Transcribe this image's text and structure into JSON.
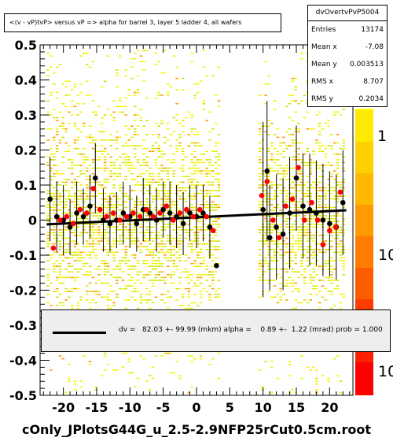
{
  "chart_data": {
    "type": "scatter",
    "title": "<(v - vP)tvP> versus   vP => alpha for barrel 3, layer 5 ladder 4, all wafers",
    "xlabel": "",
    "ylabel": "",
    "xlim": [
      -23.5,
      23.5
    ],
    "ylim": [
      -0.5,
      0.5
    ],
    "x_ticks": [
      -20,
      -15,
      -10,
      -5,
      0,
      5,
      10,
      15,
      20
    ],
    "y_ticks": [
      -0.5,
      -0.4,
      -0.3,
      -0.2,
      -0.1,
      0,
      0.1,
      0.2,
      0.3,
      0.4,
      0.5
    ],
    "y_tick_labels": [
      "-0.5",
      "-0.4",
      "-0.3",
      "-0.2",
      "-0.1",
      "0",
      "0.1",
      "0.2",
      "0.3",
      "0.4",
      "0.5"
    ],
    "x_tick_labels": [
      "-20",
      "-15",
      "-10",
      "-5",
      "0",
      "5",
      "10",
      "15",
      "20"
    ],
    "colorbar_labels": [
      "1",
      "10",
      "10"
    ],
    "series": [
      {
        "color": "#000000",
        "points": [
          {
            "x": -22.0,
            "y": 0.06,
            "err": 0.12
          },
          {
            "x": -21.0,
            "y": 0.01,
            "err": 0.1
          },
          {
            "x": -20.0,
            "y": 0.0,
            "err": 0.1
          },
          {
            "x": -19.0,
            "y": -0.02,
            "err": 0.08
          },
          {
            "x": -18.0,
            "y": 0.02,
            "err": 0.09
          },
          {
            "x": -17.0,
            "y": 0.01,
            "err": 0.08
          },
          {
            "x": -16.0,
            "y": 0.04,
            "err": 0.09
          },
          {
            "x": -15.2,
            "y": 0.12,
            "err": 0.1
          },
          {
            "x": -14.0,
            "y": 0.0,
            "err": 0.09
          },
          {
            "x": -13.0,
            "y": -0.01,
            "err": 0.08
          },
          {
            "x": -12.0,
            "y": 0.0,
            "err": 0.08
          },
          {
            "x": -11.0,
            "y": 0.02,
            "err": 0.09
          },
          {
            "x": -10.0,
            "y": 0.01,
            "err": 0.09
          },
          {
            "x": -9.0,
            "y": -0.01,
            "err": 0.08
          },
          {
            "x": -8.0,
            "y": 0.03,
            "err": 0.09
          },
          {
            "x": -7.0,
            "y": 0.02,
            "err": 0.08
          },
          {
            "x": -6.0,
            "y": 0.0,
            "err": 0.09
          },
          {
            "x": -5.0,
            "y": 0.03,
            "err": 0.08
          },
          {
            "x": -4.0,
            "y": 0.02,
            "err": 0.09
          },
          {
            "x": -3.0,
            "y": 0.01,
            "err": 0.09
          },
          {
            "x": -2.0,
            "y": -0.01,
            "err": 0.09
          },
          {
            "x": -1.0,
            "y": 0.02,
            "err": 0.08
          },
          {
            "x": 0.0,
            "y": 0.01,
            "err": 0.09
          },
          {
            "x": 1.0,
            "y": 0.02,
            "err": 0.08
          },
          {
            "x": 2.0,
            "y": -0.02,
            "err": 0.09
          },
          {
            "x": 3.0,
            "y": -0.13,
            "err": 0.0
          },
          {
            "x": 10.0,
            "y": 0.03,
            "err": 0.25
          },
          {
            "x": 10.6,
            "y": 0.14,
            "err": 0.2
          },
          {
            "x": 11.0,
            "y": -0.05,
            "err": 0.15
          },
          {
            "x": 12.0,
            "y": -0.02,
            "err": 0.15
          },
          {
            "x": 13.0,
            "y": -0.04,
            "err": 0.16
          },
          {
            "x": 14.0,
            "y": 0.02,
            "err": 0.16
          },
          {
            "x": 15.0,
            "y": 0.12,
            "err": 0.15
          },
          {
            "x": 16.0,
            "y": 0.04,
            "err": 0.15
          },
          {
            "x": 17.0,
            "y": 0.03,
            "err": 0.16
          },
          {
            "x": 18.0,
            "y": 0.02,
            "err": 0.15
          },
          {
            "x": 19.0,
            "y": 0.0,
            "err": 0.16
          },
          {
            "x": 20.0,
            "y": -0.01,
            "err": 0.15
          },
          {
            "x": 21.0,
            "y": -0.02,
            "err": 0.15
          },
          {
            "x": 22.0,
            "y": 0.05,
            "err": 0.15
          }
        ]
      },
      {
        "color": "#ff0000",
        "points": [
          {
            "x": -21.5,
            "y": -0.08,
            "err": 0.0
          },
          {
            "x": -20.5,
            "y": 0.0,
            "err": 0.0
          },
          {
            "x": -19.5,
            "y": 0.01,
            "err": 0.0
          },
          {
            "x": -18.5,
            "y": -0.01,
            "err": 0.0
          },
          {
            "x": -17.5,
            "y": 0.03,
            "err": 0.0
          },
          {
            "x": -16.5,
            "y": 0.02,
            "err": 0.0
          },
          {
            "x": -15.5,
            "y": 0.09,
            "err": 0.0
          },
          {
            "x": -14.5,
            "y": 0.03,
            "err": 0.0
          },
          {
            "x": -13.5,
            "y": 0.01,
            "err": 0.0
          },
          {
            "x": -12.5,
            "y": 0.02,
            "err": 0.0
          },
          {
            "x": -11.5,
            "y": 0.0,
            "err": 0.0
          },
          {
            "x": -10.5,
            "y": 0.01,
            "err": 0.0
          },
          {
            "x": -9.5,
            "y": 0.02,
            "err": 0.0
          },
          {
            "x": -8.5,
            "y": 0.01,
            "err": 0.0
          },
          {
            "x": -7.5,
            "y": 0.03,
            "err": 0.0
          },
          {
            "x": -6.5,
            "y": 0.01,
            "err": 0.0
          },
          {
            "x": -5.5,
            "y": 0.02,
            "err": 0.0
          },
          {
            "x": -4.5,
            "y": 0.04,
            "err": 0.0
          },
          {
            "x": -3.5,
            "y": 0.0,
            "err": 0.0
          },
          {
            "x": -2.5,
            "y": 0.02,
            "err": 0.0
          },
          {
            "x": -1.5,
            "y": 0.03,
            "err": 0.0
          },
          {
            "x": -0.5,
            "y": 0.01,
            "err": 0.0
          },
          {
            "x": 0.5,
            "y": 0.03,
            "err": 0.0
          },
          {
            "x": 1.5,
            "y": 0.01,
            "err": 0.0
          },
          {
            "x": 2.5,
            "y": -0.03,
            "err": 0.0
          },
          {
            "x": 9.8,
            "y": 0.07,
            "err": 0.0
          },
          {
            "x": 10.6,
            "y": 0.11,
            "err": 0.0
          },
          {
            "x": 11.5,
            "y": 0.0,
            "err": 0.0
          },
          {
            "x": 12.4,
            "y": -0.05,
            "err": 0.0
          },
          {
            "x": 13.4,
            "y": 0.04,
            "err": 0.0
          },
          {
            "x": 14.4,
            "y": 0.06,
            "err": 0.0
          },
          {
            "x": 15.3,
            "y": 0.15,
            "err": 0.0
          },
          {
            "x": 16.2,
            "y": 0.0,
            "err": 0.0
          },
          {
            "x": 17.3,
            "y": 0.05,
            "err": 0.0
          },
          {
            "x": 18.2,
            "y": 0.0,
            "err": 0.0
          },
          {
            "x": 19.0,
            "y": -0.07,
            "err": 0.0
          },
          {
            "x": 20.0,
            "y": -0.03,
            "err": 0.0
          },
          {
            "x": 20.9,
            "y": -0.02,
            "err": 0.0
          },
          {
            "x": 21.6,
            "y": 0.08,
            "err": 0.0
          }
        ]
      }
    ],
    "fit_line": {
      "x": [
        -22.5,
        22.5
      ],
      "y": [
        -0.012,
        0.028
      ],
      "color": "#000000"
    }
  },
  "stats": {
    "title": "dvOvertvPvP5004",
    "rows": [
      {
        "label": "Entries",
        "value": "13174"
      },
      {
        "label": "Mean x",
        "value": "-7.08"
      },
      {
        "label": "Mean y",
        "value": "0.003513"
      },
      {
        "label": "RMS x",
        "value": "8.707"
      },
      {
        "label": "RMS y",
        "value": "0.2034"
      }
    ]
  },
  "fit_legend": {
    "text": "dv =   82.03 +- 99.99 (mkm) alpha =    0.89 +-  1.22 (mrad) prob = 1.000"
  },
  "footer": "cOnly_JPlotsG44G_u_2.5-2.9NFP25rCut0.5cm.root"
}
